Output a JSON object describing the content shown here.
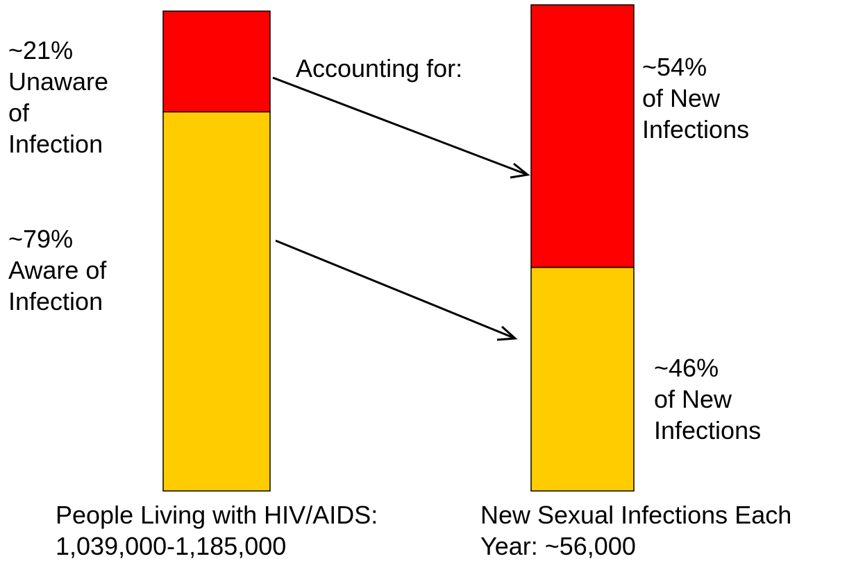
{
  "chart_data": {
    "type": "stacked_bar",
    "categories": [
      "People Living with HIV/AIDS:\n1,039,000-1,185,000",
      "New Sexual Infections Each\nYear: ~56,000"
    ],
    "series": [
      {
        "color": "#ffcc00",
        "values": [
          79,
          46
        ],
        "value_labels": [
          "~79%\nAware of\nInfection",
          "~46%\nof New\nInfections"
        ]
      },
      {
        "color": "#ff0000",
        "values": [
          21,
          54
        ],
        "value_labels": [
          "~21%\nUnaware\nof\nInfection",
          "~54%\nof New\nInfections"
        ]
      }
    ],
    "annotation": "Accounting for:"
  }
}
